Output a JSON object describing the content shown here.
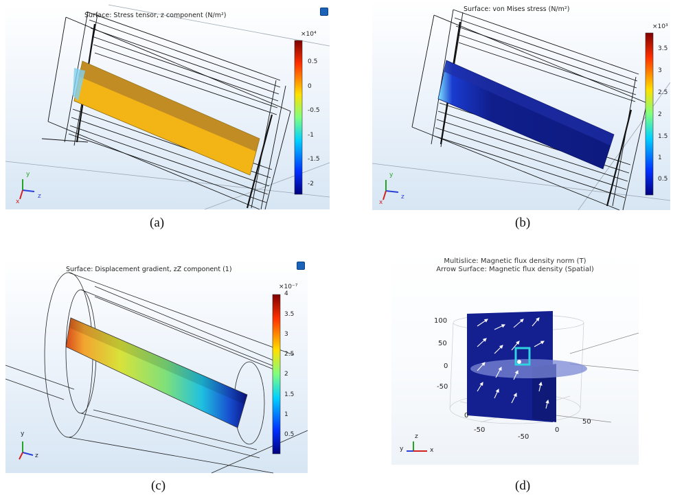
{
  "panels": {
    "a": {
      "title": "Surface: Stress tensor, z component (N/m²)",
      "exponent": "×10⁴",
      "ticks": [
        "0.5",
        "0",
        "-0.5",
        "-1",
        "-1.5",
        "-2"
      ],
      "caption": "(a)"
    },
    "b": {
      "title": "Surface: von Mises stress (N/m²)",
      "exponent": "×10³",
      "ticks": [
        "3.5",
        "3",
        "2.5",
        "2",
        "1.5",
        "1",
        "0.5"
      ],
      "caption": "(b)"
    },
    "c": {
      "title": "Surface: Displacement gradient, zZ component (1)",
      "exponent": "×10⁻⁷",
      "ticks": [
        "4",
        "3.5",
        "3",
        "2.5",
        "2",
        "1.5",
        "1",
        "0.5"
      ],
      "caption": "(c)"
    },
    "d": {
      "title_line1": "Multislice: Magnetic flux density norm (T)",
      "title_line2": "Arrow Surface: Magnetic flux density (Spatial)",
      "vertical_ticks": [
        "100",
        "50",
        "0",
        "-50"
      ],
      "floor_ticks": [
        "0",
        "-50",
        "-50",
        "0",
        "50"
      ],
      "caption": "(d)"
    }
  },
  "axes_triad": {
    "x": "x",
    "y": "y",
    "z": "z"
  },
  "colors": {
    "axis_x": "#d22020",
    "axis_y": "#23a323",
    "axis_z": "#2a3fd6",
    "stress_bar": "#f1b117",
    "vonmises_bar": "#14208f",
    "mesh_line": "#111111",
    "viewport_bg": "#d7e6f4"
  },
  "icons": [
    "rotate-view-icon"
  ]
}
